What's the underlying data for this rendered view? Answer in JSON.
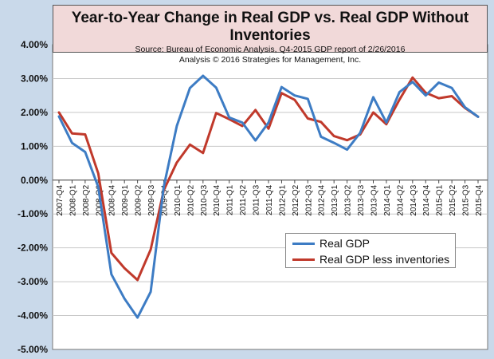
{
  "colors": {
    "real_gdp": "#3d7cc4",
    "less_inventories": "#c0392b",
    "background": "#c9d9ea",
    "title_bg": "#f1d9d9"
  },
  "chart_data": {
    "type": "line",
    "title": "Year-to-Year Change in Real GDP vs. Real GDP Without Inventories",
    "subtitle_lines": [
      "Source: Bureau of Economic Analysis, Q4-2015 GDP report of 2/26/2016",
      "Analysis © 2016 Strategies for Management, Inc."
    ],
    "xlabel": "",
    "ylabel": "",
    "ylim": [
      -5,
      4
    ],
    "y_ticks": [
      "4.00%",
      "3.00%",
      "2.00%",
      "1.00%",
      "0.00%",
      "-1.00%",
      "-2.00%",
      "-3.00%",
      "-4.00%",
      "-5.00%"
    ],
    "grid": true,
    "legend_position": "lower-right",
    "categories": [
      "2007-Q4",
      "2008-Q1",
      "2008-Q2",
      "2008-Q3",
      "2008-Q4",
      "2009-Q1",
      "2009-Q2",
      "2009-Q3",
      "2009-Q4",
      "2010-Q1",
      "2010-Q2",
      "2010-Q3",
      "2010-Q4",
      "2011-Q1",
      "2011-Q2",
      "2011-Q3",
      "2011-Q4",
      "2012-Q1",
      "2012-Q2",
      "2012-Q3",
      "2012-Q4",
      "2013-Q1",
      "2013-Q2",
      "2013-Q3",
      "2013-Q4",
      "2014-Q1",
      "2014-Q2",
      "2014-Q3",
      "2014-Q4",
      "2015-Q1",
      "2015-Q2",
      "2015-Q3",
      "2015-Q4"
    ],
    "series": [
      {
        "name": "Real GDP",
        "values": [
          1.88,
          1.1,
          0.83,
          -0.2,
          -2.78,
          -3.5,
          -4.06,
          -3.3,
          -0.2,
          1.6,
          2.72,
          3.08,
          2.73,
          1.85,
          1.7,
          1.17,
          1.7,
          2.75,
          2.5,
          2.4,
          1.28,
          1.1,
          0.9,
          1.4,
          2.45,
          1.7,
          2.6,
          2.9,
          2.5,
          2.88,
          2.72,
          2.15,
          1.87
        ]
      },
      {
        "name": "Real GDP less inventories",
        "values": [
          2.0,
          1.38,
          1.35,
          0.2,
          -2.15,
          -2.6,
          -2.95,
          -2.05,
          -0.3,
          0.52,
          1.05,
          0.8,
          1.98,
          1.8,
          1.6,
          2.07,
          1.52,
          2.57,
          2.37,
          1.82,
          1.72,
          1.3,
          1.18,
          1.35,
          2.0,
          1.65,
          2.38,
          3.03,
          2.58,
          2.42,
          2.48,
          2.13,
          1.87
        ]
      }
    ]
  }
}
